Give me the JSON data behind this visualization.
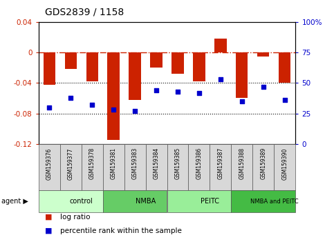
{
  "title": "GDS2839 / 1158",
  "samples": [
    "GSM159376",
    "GSM159377",
    "GSM159378",
    "GSM159381",
    "GSM159383",
    "GSM159384",
    "GSM159385",
    "GSM159386",
    "GSM159387",
    "GSM159388",
    "GSM159389",
    "GSM159390"
  ],
  "log_ratios": [
    -0.042,
    -0.022,
    -0.038,
    -0.115,
    -0.062,
    -0.02,
    -0.028,
    -0.038,
    0.018,
    -0.06,
    -0.005,
    -0.04
  ],
  "percentile_ranks": [
    30,
    38,
    32,
    28,
    27,
    44,
    43,
    42,
    53,
    35,
    47,
    36
  ],
  "groups": [
    {
      "label": "control",
      "start": 0,
      "end": 3,
      "color": "#ccffcc"
    },
    {
      "label": "NMBA",
      "start": 3,
      "end": 6,
      "color": "#66cc66"
    },
    {
      "label": "PEITC",
      "start": 6,
      "end": 9,
      "color": "#99ee99"
    },
    {
      "label": "NMBA and PEITC",
      "start": 9,
      "end": 12,
      "color": "#44bb44"
    }
  ],
  "bar_color": "#cc2200",
  "dot_color": "#0000cc",
  "ylim_left": [
    -0.12,
    0.04
  ],
  "ylim_right": [
    0,
    100
  ],
  "yticks_left": [
    -0.12,
    -0.08,
    -0.04,
    0.0,
    0.04
  ],
  "yticks_right": [
    0,
    25,
    50,
    75,
    100
  ],
  "background_color": "#ffffff",
  "plot_bg_color": "#ffffff",
  "dashed_line_color": "#cc2200",
  "legend_log_ratio": "log ratio",
  "legend_percentile": "percentile rank within the sample",
  "bar_width": 0.55
}
